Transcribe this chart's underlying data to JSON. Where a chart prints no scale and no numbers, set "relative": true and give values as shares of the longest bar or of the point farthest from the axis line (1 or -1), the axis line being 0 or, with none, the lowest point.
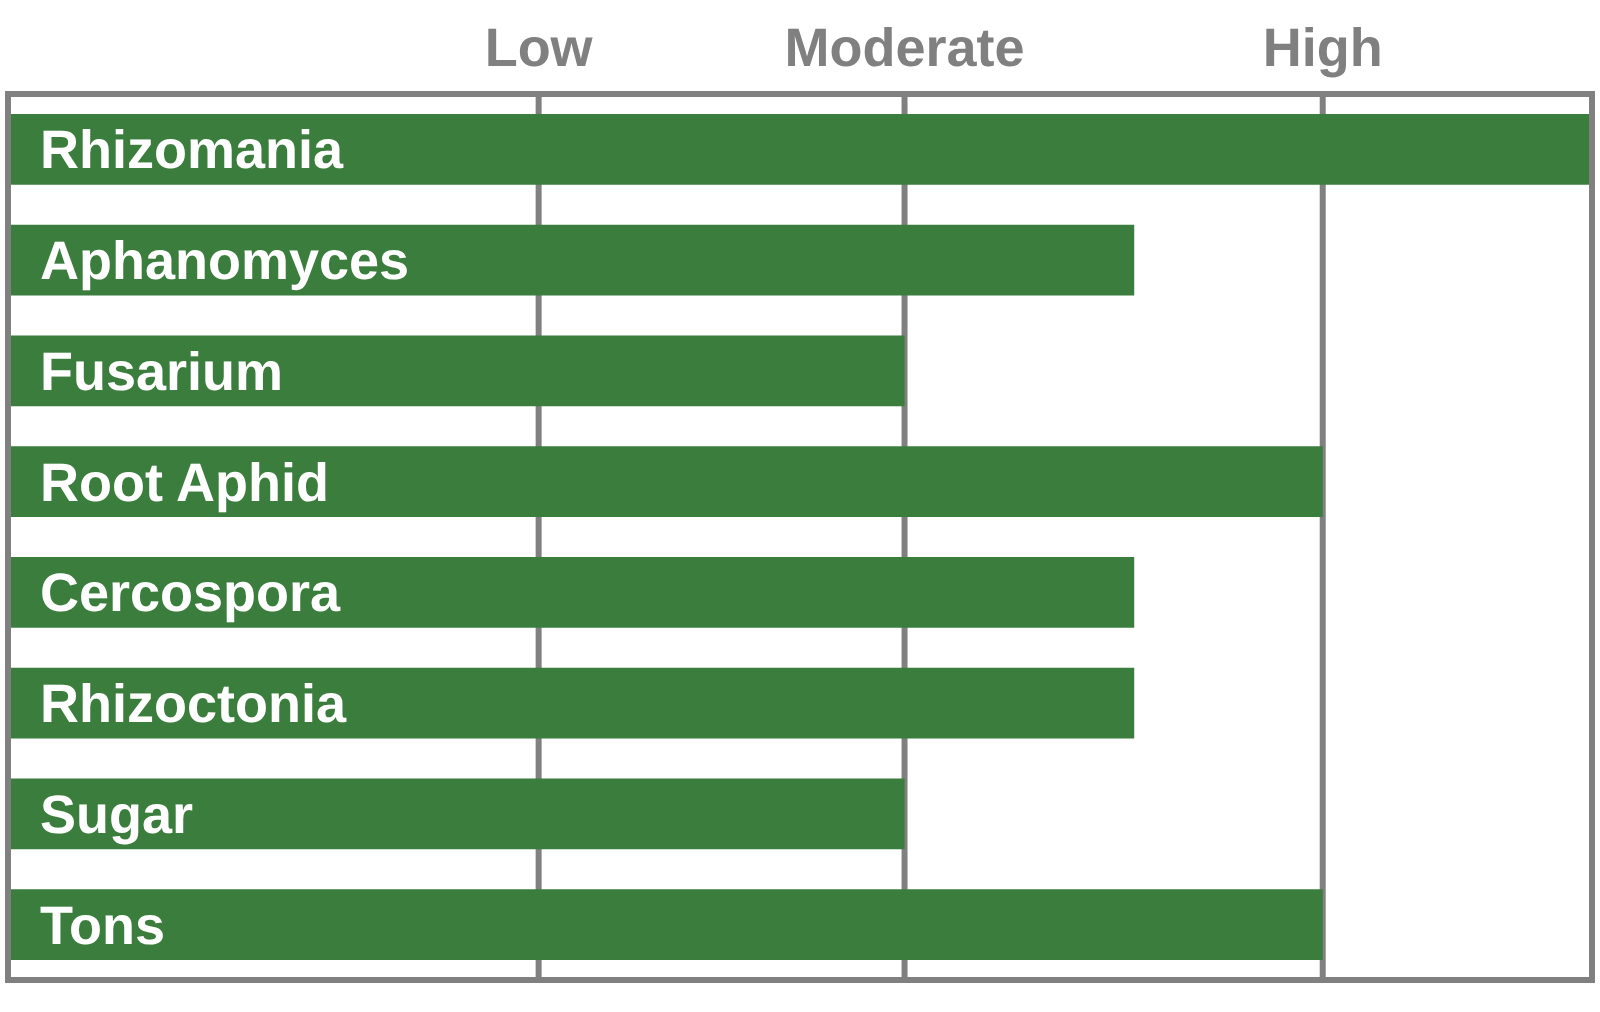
{
  "chart_data": {
    "type": "bar",
    "orientation": "horizontal",
    "relative": true,
    "categories": [
      "Rhizomania",
      "Aphanomyces",
      "Fusarium",
      "Root Aphid",
      "Cercospora",
      "Rhizoctonia",
      "Sugar",
      "Tons"
    ],
    "values": [
      1,
      0.711,
      0.566,
      0.83,
      0.711,
      0.711,
      0.566,
      0.83
    ],
    "color": "#3a7d3c",
    "ref_lines": [
      {
        "axis": "x",
        "value": 0.335,
        "label": "Low",
        "color": "#808080"
      },
      {
        "axis": "x",
        "value": 0.566,
        "label": "Moderate",
        "color": "#808080"
      },
      {
        "axis": "x",
        "value": 0.83,
        "label": "High",
        "color": "#808080"
      }
    ],
    "legend": false
  }
}
